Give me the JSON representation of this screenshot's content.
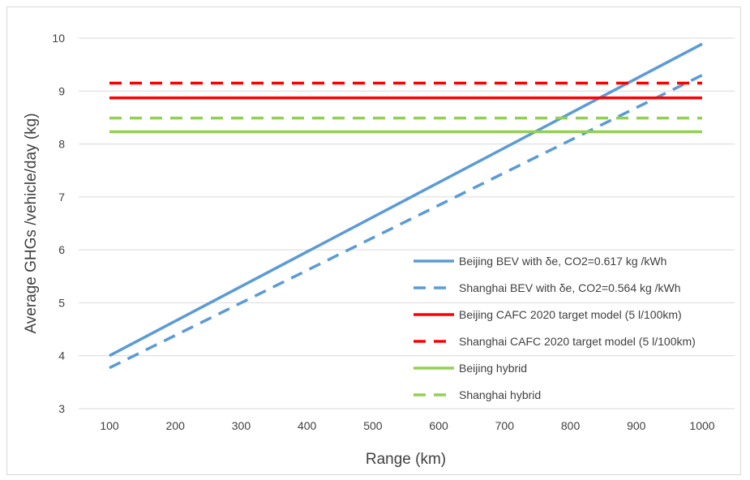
{
  "chart_data": {
    "type": "line",
    "title": "",
    "xlabel": "Range (km)",
    "ylabel": "Average GHGs /vehicle/day (kg)",
    "x": [
      100,
      1000
    ],
    "xticks": [
      "100",
      "200",
      "300",
      "400",
      "500",
      "600",
      "700",
      "800",
      "900",
      "1000"
    ],
    "yticks": [
      "3",
      "4",
      "5",
      "6",
      "7",
      "8",
      "9",
      "10"
    ],
    "xlim": [
      100,
      1000
    ],
    "ylim": [
      3,
      10
    ],
    "grid": "horizontal",
    "legend_position": "bottom-right inside",
    "series": [
      {
        "name": "Beijing BEV with δe, CO2=0.617 kg /kWh",
        "values": [
          4.0,
          9.89
        ],
        "color": "#5b9bd5",
        "dash": "solid"
      },
      {
        "name": "Shanghai BEV with δe, CO2=0.564 kg /kWh",
        "values": [
          3.77,
          9.3
        ],
        "color": "#5b9bd5",
        "dash": "dashed"
      },
      {
        "name": "Beijing CAFC 2020 target model (5 l/100km)",
        "values": [
          8.87,
          8.87
        ],
        "color": "#ff0000",
        "dash": "solid"
      },
      {
        "name": "Shanghai CAFC 2020 target model (5 l/100km)",
        "values": [
          9.15,
          9.15
        ],
        "color": "#ff0000",
        "dash": "dashed"
      },
      {
        "name": "Beijing hybrid",
        "values": [
          8.23,
          8.23
        ],
        "color": "#92d050",
        "dash": "solid"
      },
      {
        "name": "Shanghai hybrid",
        "values": [
          8.49,
          8.49
        ],
        "color": "#92d050",
        "dash": "dashed"
      }
    ]
  }
}
